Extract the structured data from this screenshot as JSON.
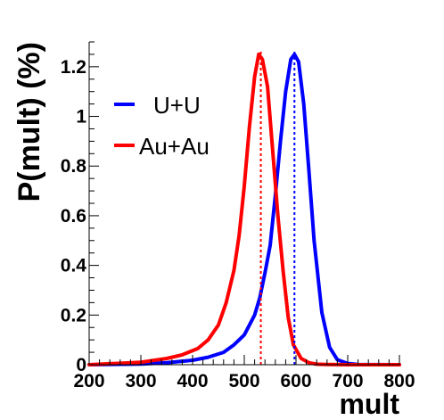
{
  "chart_data": {
    "type": "line",
    "title": "",
    "xlabel": "mult",
    "ylabel": "P(mult) (%)",
    "xlim": [
      200,
      800
    ],
    "ylim": [
      0,
      1.3
    ],
    "x_ticks": [
      200,
      300,
      400,
      500,
      600,
      700,
      800
    ],
    "y_ticks": [
      0,
      0.2,
      0.4,
      0.6,
      0.8,
      1,
      1.2
    ],
    "x_tick_labels": [
      "200",
      "300",
      "400",
      "500",
      "600",
      "700",
      "800"
    ],
    "y_tick_labels": [
      "0",
      "0.2",
      "0.4",
      "0.6",
      "0.8",
      "1",
      "1.2"
    ],
    "grid": false,
    "legend_position": "top-left",
    "series": [
      {
        "name": "U+U",
        "color": "#0000ff",
        "mean_marker_x": 597,
        "x": [
          200,
          300,
          350,
          400,
          430,
          460,
          480,
          500,
          520,
          530,
          540,
          550,
          560,
          570,
          580,
          590,
          597,
          605,
          615,
          625,
          635,
          650,
          665,
          680,
          700,
          720,
          800
        ],
        "y": [
          0,
          0.003,
          0.008,
          0.018,
          0.03,
          0.05,
          0.08,
          0.12,
          0.2,
          0.27,
          0.37,
          0.48,
          0.68,
          0.9,
          1.1,
          1.23,
          1.25,
          1.22,
          1.05,
          0.78,
          0.5,
          0.21,
          0.07,
          0.02,
          0.005,
          0.001,
          0
        ]
      },
      {
        "name": "Au+Au",
        "color": "#ff0000",
        "mean_marker_x": 532,
        "x": [
          200,
          300,
          350,
          380,
          410,
          430,
          450,
          465,
          480,
          490,
          500,
          510,
          520,
          528,
          535,
          545,
          555,
          565,
          575,
          585,
          595,
          610,
          625,
          640,
          660,
          700,
          800
        ],
        "y": [
          0,
          0.01,
          0.025,
          0.04,
          0.065,
          0.1,
          0.16,
          0.25,
          0.38,
          0.52,
          0.72,
          0.96,
          1.16,
          1.25,
          1.23,
          1.12,
          0.86,
          0.6,
          0.38,
          0.19,
          0.08,
          0.025,
          0.008,
          0.002,
          0.001,
          0,
          0
        ]
      }
    ]
  }
}
